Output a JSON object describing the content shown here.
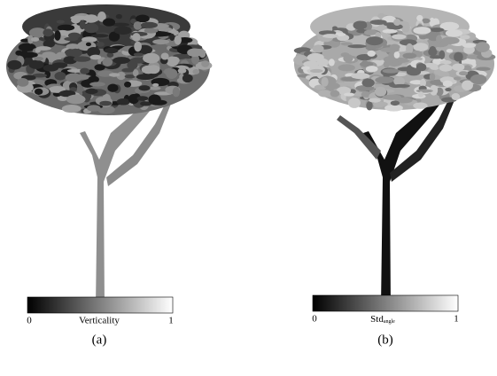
{
  "panels": [
    {
      "colorbar": {
        "label": "Verticality",
        "ticks": [
          0,
          1
        ]
      },
      "caption": "(a)"
    },
    {
      "colorbar": {
        "label": "Std",
        "label_subscript": "angle",
        "ticks": [
          0,
          1
        ]
      },
      "caption": "(b)"
    }
  ]
}
